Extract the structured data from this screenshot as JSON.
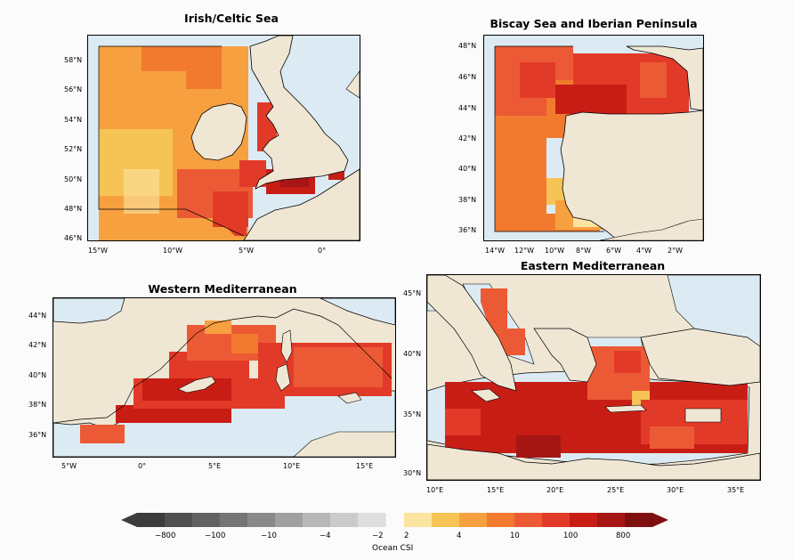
{
  "panels": [
    {
      "title": "Irish/Celtic Sea",
      "lat_ticks": [
        "58°N",
        "56°N",
        "54°N",
        "52°N",
        "50°N",
        "48°N",
        "46°N"
      ],
      "lon_ticks": [
        "15°W",
        "10°W",
        "5°W",
        "0°"
      ]
    },
    {
      "title": "Biscay Sea and Iberian Peninsula",
      "lat_ticks": [
        "48°N",
        "46°N",
        "44°N",
        "42°N",
        "40°N",
        "38°N",
        "36°N"
      ],
      "lon_ticks": [
        "14°W",
        "12°W",
        "10°W",
        "8°W",
        "6°W",
        "4°W",
        "2°W"
      ]
    },
    {
      "title": "Western Mediterranean",
      "lat_ticks": [
        "44°N",
        "42°N",
        "40°N",
        "38°N",
        "36°N"
      ],
      "lon_ticks": [
        "5°W",
        "0°",
        "5°E",
        "10°E",
        "15°E"
      ]
    },
    {
      "title": "Eastern Mediterranean",
      "lat_ticks": [
        "45°N",
        "40°N",
        "35°N",
        "30°N"
      ],
      "lon_ticks": [
        "10°E",
        "15°E",
        "20°E",
        "25°E",
        "30°E",
        "35°E"
      ]
    }
  ],
  "colorbar": {
    "label": "Ocean CSI",
    "negative_tick_labels": [
      "−800",
      "−100",
      "−10",
      "−4",
      "−2"
    ],
    "positive_tick_labels": [
      "2",
      "4",
      "10",
      "100",
      "800"
    ],
    "negative_colors": [
      "#3c3c3c",
      "#4f4f4f",
      "#626262",
      "#757575",
      "#898989",
      "#a0a0a0",
      "#b7b7b7",
      "#cbcbcb",
      "#dedede"
    ],
    "positive_colors": [
      "#fbe4a0",
      "#f6c455",
      "#f7a040",
      "#f27a2f",
      "#ec5a35",
      "#e23a28",
      "#c81d15",
      "#a51615",
      "#7f1010"
    ]
  },
  "colors": {
    "sea": "#dcebf3",
    "land": "#f0e6d4"
  }
}
